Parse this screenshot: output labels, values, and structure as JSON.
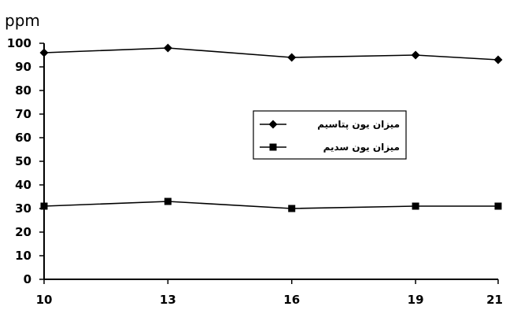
{
  "chart_data": {
    "type": "line",
    "x": [
      10,
      13,
      16,
      19,
      21
    ],
    "x_tick_labels": [
      "10",
      "13",
      "16",
      "19",
      "21"
    ],
    "y_tick_labels": [
      "0",
      "10",
      "20",
      "30",
      "40",
      "50",
      "60",
      "70",
      "80",
      "90",
      "100"
    ],
    "ylim": [
      0,
      100
    ],
    "y_unit_label": "ppm",
    "grid": false,
    "legend_position": "center-right",
    "series": [
      {
        "name": "میزان یون پتاسیم",
        "marker": "diamond",
        "color": "#000000",
        "values": [
          96,
          98,
          94,
          95,
          93
        ]
      },
      {
        "name": "میزان یون سدیم",
        "marker": "square",
        "color": "#000000",
        "values": [
          31,
          33,
          30,
          31,
          31
        ]
      }
    ]
  }
}
